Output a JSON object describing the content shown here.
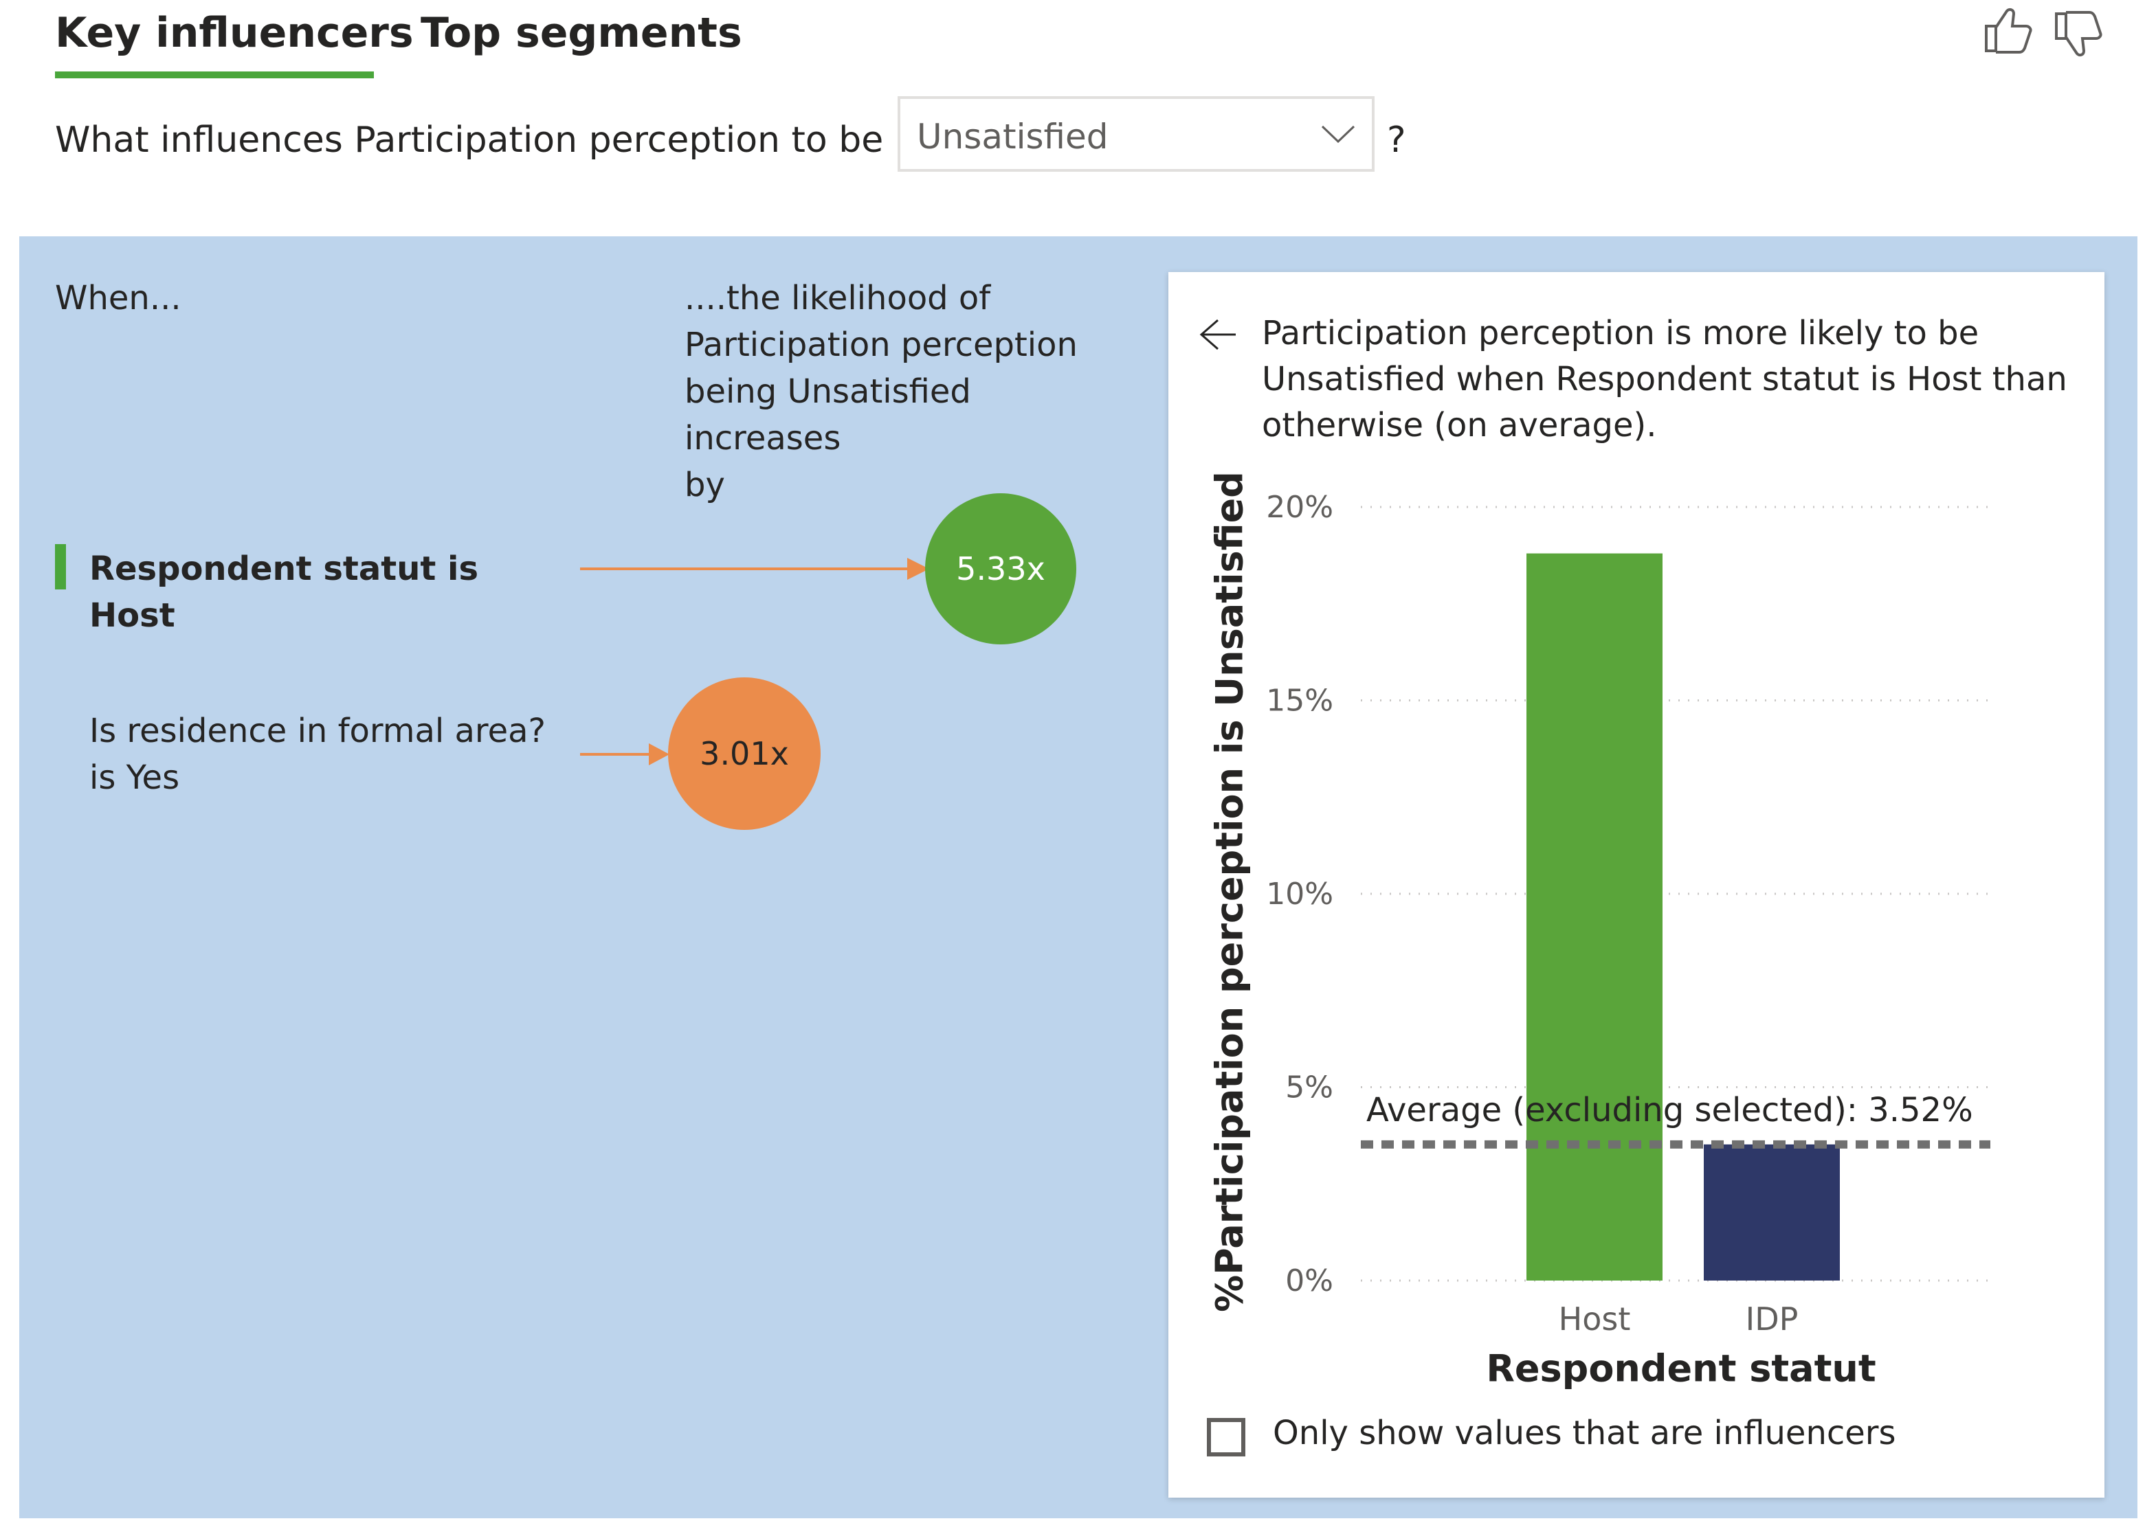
{
  "tabs": [
    {
      "label": "Key influencers",
      "active": true
    },
    {
      "label": "Top segments",
      "active": false
    }
  ],
  "feedback": {
    "like_icon": "thumbs-up-icon",
    "dislike_icon": "thumbs-down-icon"
  },
  "question": {
    "prefix": "What influences Participation perception to be",
    "selected_value": "Unsatisfied",
    "suffix": "?"
  },
  "influencers_panel": {
    "when_label": "When...",
    "likelihood_label_lines": [
      "....the likelihood of",
      "Participation perception",
      "being Unsatisfied increases",
      "by"
    ],
    "items": [
      {
        "label_lines": [
          "Respondent statut is Host"
        ],
        "value": "5.33x",
        "selected": true,
        "color": "#5aa53a"
      },
      {
        "label_lines": [
          "Is residence in formal area?",
          "is Yes"
        ],
        "value": "3.01x",
        "selected": false,
        "color": "#eb8c4b"
      }
    ],
    "arrow_color": "#eb8c4b",
    "panel_color": "#bdd4ec"
  },
  "detail": {
    "back_icon": "back-arrow-icon",
    "description_lines": [
      "Participation perception is more likely to be",
      "Unsatisfied when Respondent statut is Host than",
      "otherwise (on average)."
    ],
    "checkbox_label": "Only show values that are influencers",
    "checkbox_checked": false
  },
  "chart_data": {
    "type": "bar",
    "categories": [
      "Host",
      "IDP"
    ],
    "values": [
      18.8,
      3.52
    ],
    "colors": [
      "#5aa53a",
      "#2e3868"
    ],
    "xlabel": "Respondent statut",
    "ylabel": "%Participation perception is Unsatisfied",
    "ylim": [
      0,
      20
    ],
    "yticks": [
      "0%",
      "5%",
      "10%",
      "15%",
      "20%"
    ],
    "ytick_values": [
      0,
      5,
      10,
      15,
      20
    ],
    "reference_line": {
      "value": 3.52,
      "label": "Average (excluding selected): 3.52%"
    },
    "grid": true
  }
}
